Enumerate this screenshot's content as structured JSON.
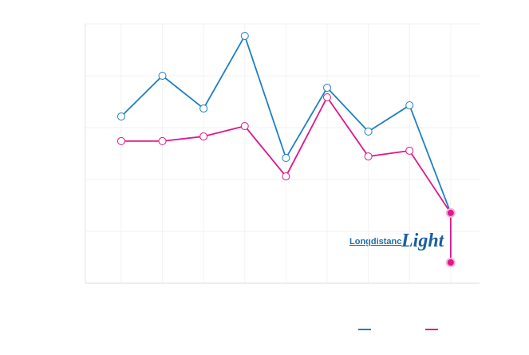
{
  "chart_data": {
    "type": "line",
    "series": [
      {
        "color": "#1f7fc4",
        "x": [
          1,
          2,
          3,
          4,
          5,
          6,
          7,
          8,
          9
        ],
        "values": [
          64.3,
          80,
          67.4,
          95.4,
          48.3,
          75.4,
          58.5,
          68.6,
          27.1
        ]
      },
      {
        "color": "#e0168c",
        "x": [
          1,
          2,
          3,
          4,
          5,
          6,
          7,
          8,
          9,
          9
        ],
        "values": [
          54.8,
          54.8,
          56.6,
          60.6,
          41.2,
          71.7,
          48.9,
          51.1,
          27.1,
          8
        ]
      }
    ],
    "xlim": [
      0.13,
      9.7
    ],
    "xticks": [
      1,
      2,
      3,
      4,
      5,
      6,
      7,
      8,
      9
    ],
    "ylim": [
      0,
      100
    ],
    "yticks": [
      0,
      20,
      40,
      60,
      80,
      100
    ],
    "grid": true
  },
  "watermark": {
    "brand": "Longdistanc",
    "script": "Light"
  }
}
